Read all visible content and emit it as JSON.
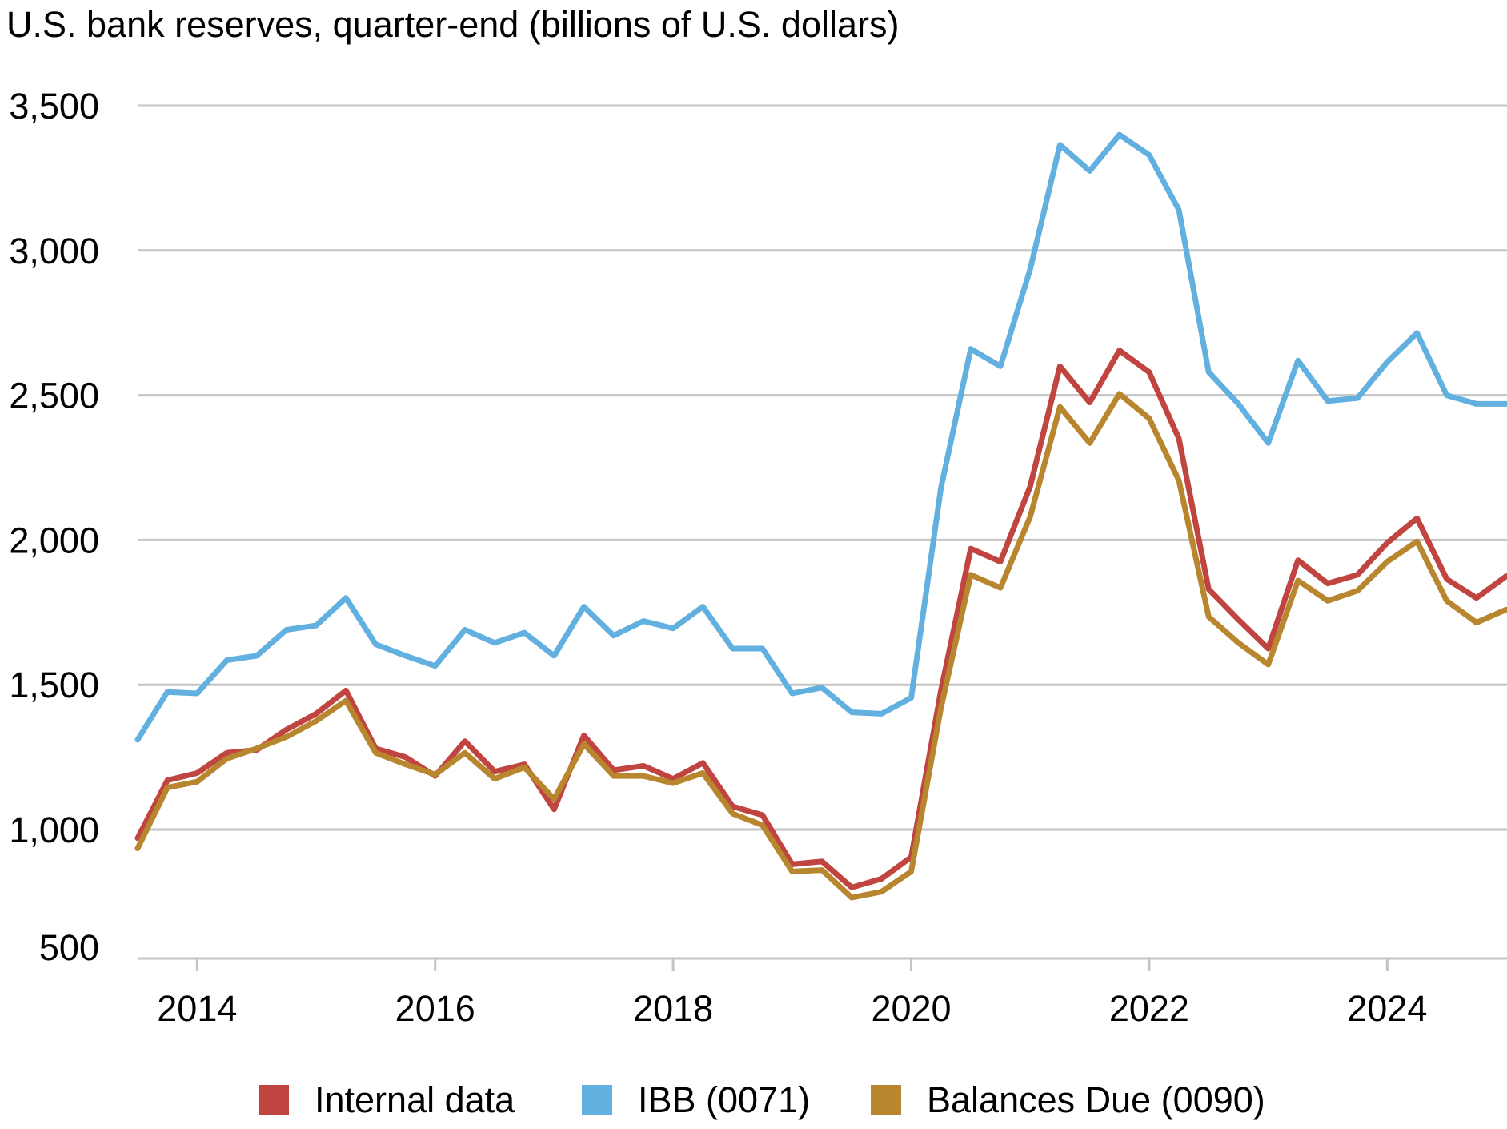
{
  "chart_data": {
    "type": "line",
    "title": "U.S. bank reserves, quarter-end (billions of U.S. dollars)",
    "xlabel": "",
    "ylabel": "",
    "xlim": [
      2013.5,
      2025.0
    ],
    "ylim": [
      500,
      3500
    ],
    "x_ticks": [
      2014,
      2016,
      2018,
      2020,
      2022,
      2024
    ],
    "x_tick_labels": [
      "2014",
      "2016",
      "2018",
      "2020",
      "2022",
      "2024"
    ],
    "y_ticks": [
      500,
      1000,
      1500,
      2000,
      2500,
      3000,
      3500
    ],
    "y_tick_labels": [
      "500",
      "1,000",
      "1,500",
      "2,000",
      "2,500",
      "3,000",
      "3,500"
    ],
    "grid": true,
    "legend_position": "bottom",
    "x": [
      2013.5,
      2013.75,
      2014.0,
      2014.25,
      2014.5,
      2014.75,
      2015.0,
      2015.25,
      2015.5,
      2015.75,
      2016.0,
      2016.25,
      2016.5,
      2016.75,
      2017.0,
      2017.25,
      2017.5,
      2017.75,
      2018.0,
      2018.25,
      2018.5,
      2018.75,
      2019.0,
      2019.25,
      2019.5,
      2019.75,
      2020.0,
      2020.25,
      2020.5,
      2020.75,
      2021.0,
      2021.25,
      2021.5,
      2021.75,
      2022.0,
      2022.25,
      2022.5,
      2022.75,
      2023.0,
      2023.25,
      2023.5,
      2023.75,
      2024.0,
      2024.25,
      2024.5,
      2024.75,
      2025.0
    ],
    "series": [
      {
        "name": "Internal data",
        "color": "#c0443f",
        "values": [
          970,
          1170,
          1195,
          1265,
          1275,
          1345,
          1400,
          1480,
          1280,
          1250,
          1185,
          1305,
          1200,
          1225,
          1070,
          1325,
          1205,
          1220,
          1175,
          1230,
          1080,
          1050,
          880,
          890,
          800,
          830,
          905,
          1480,
          1970,
          1925,
          2185,
          2600,
          2475,
          2655,
          2580,
          2350,
          1830,
          1725,
          1625,
          1930,
          1850,
          1880,
          1990,
          2075,
          1865,
          1800,
          1875
        ]
      },
      {
        "name": "IBB (0071)",
        "color": "#62b0e0",
        "values": [
          1310,
          1475,
          1470,
          1585,
          1600,
          1690,
          1705,
          1800,
          1640,
          1600,
          1565,
          1690,
          1645,
          1680,
          1600,
          1770,
          1670,
          1720,
          1695,
          1770,
          1625,
          1625,
          1470,
          1490,
          1405,
          1400,
          1455,
          2180,
          2660,
          2600,
          2935,
          3365,
          3275,
          3400,
          3330,
          3140,
          2580,
          2470,
          2335,
          2620,
          2480,
          2490,
          2615,
          2715,
          2500,
          2470,
          2470
        ]
      },
      {
        "name": "Balances Due (0090)",
        "color": "#b8862e",
        "values": [
          935,
          1145,
          1165,
          1245,
          1280,
          1320,
          1375,
          1445,
          1265,
          1225,
          1190,
          1265,
          1175,
          1215,
          1105,
          1295,
          1185,
          1185,
          1160,
          1195,
          1055,
          1015,
          855,
          860,
          765,
          785,
          855,
          1420,
          1880,
          1835,
          2080,
          2460,
          2335,
          2505,
          2420,
          2205,
          1735,
          1645,
          1570,
          1860,
          1790,
          1825,
          1925,
          1995,
          1790,
          1715,
          1760
        ]
      }
    ]
  }
}
